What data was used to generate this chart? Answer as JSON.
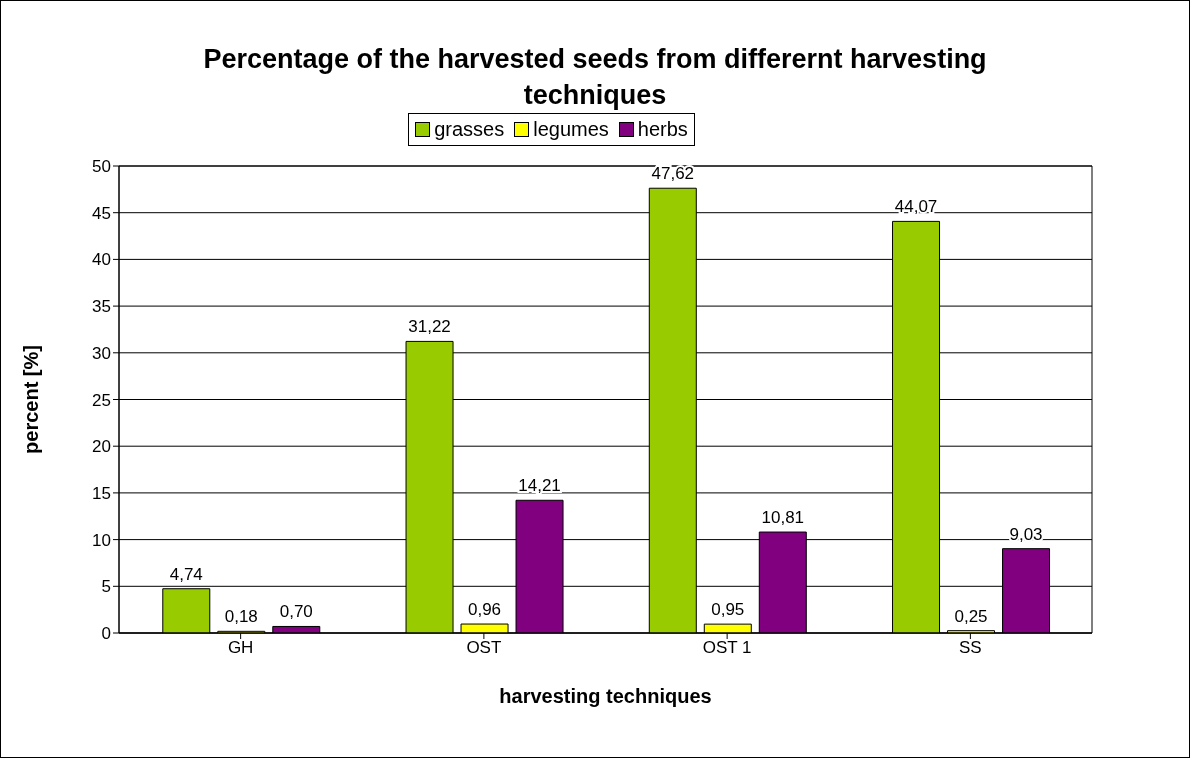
{
  "chart_data": {
    "type": "bar",
    "title": "Percentage of the harvested seeds from differernt harvesting techniques",
    "xlabel": "harvesting techniques",
    "ylabel": "percent [%]",
    "categories": [
      "GH",
      "OST",
      "OST 1",
      "SS"
    ],
    "series": [
      {
        "name": "grasses",
        "color": "#99cc00",
        "values": [
          4.74,
          31.22,
          47.62,
          44.07
        ],
        "value_labels": [
          "4,74",
          "31,22",
          "47,62",
          "44,07"
        ]
      },
      {
        "name": "legumes",
        "color": "#ffff00",
        "values": [
          0.18,
          0.96,
          0.95,
          0.25
        ],
        "value_labels": [
          "0,18",
          "0,96",
          "0,95",
          "0,25"
        ]
      },
      {
        "name": "herbs",
        "color": "#800080",
        "values": [
          0.7,
          14.21,
          10.81,
          9.03
        ],
        "value_labels": [
          "0,70",
          "14,21",
          "10,81",
          "9,03"
        ]
      }
    ],
    "ylim": [
      0,
      50
    ],
    "yticks": [
      0,
      5,
      10,
      15,
      20,
      25,
      30,
      35,
      40,
      45,
      50
    ],
    "grid": "y",
    "legend": "top"
  }
}
